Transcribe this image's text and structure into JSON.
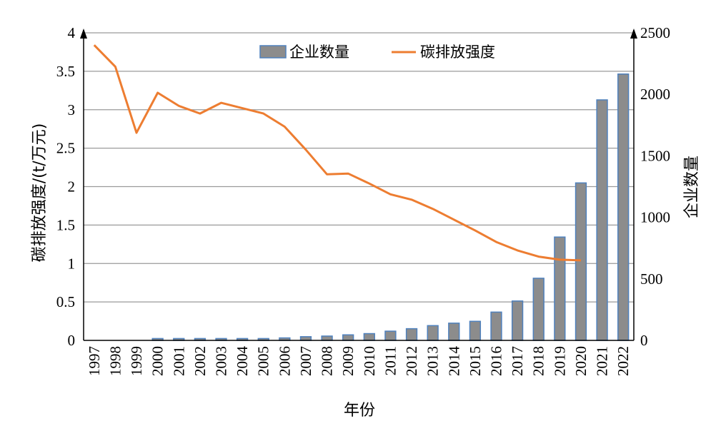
{
  "chart_data": {
    "type": "bar+line",
    "title": "",
    "xlabel": "年份",
    "ylabel_left": "碳排放强度/(t/万元)",
    "ylabel_right": "企业数量",
    "ylim_left": [
      0,
      4
    ],
    "ylim_right": [
      0,
      2500
    ],
    "yticks_left": [
      "0",
      "0.5",
      "1",
      "1.5",
      "2",
      "2.5",
      "3",
      "3.5",
      "4"
    ],
    "yticks_right": [
      "0",
      "500",
      "1000",
      "1500",
      "2000",
      "2500"
    ],
    "grid": true,
    "legend_position": "top-center",
    "categories": [
      "1997",
      "1998",
      "1999",
      "2000",
      "2001",
      "2002",
      "2003",
      "2004",
      "2005",
      "2006",
      "2007",
      "2008",
      "2009",
      "2010",
      "2011",
      "2012",
      "2013",
      "2014",
      "2015",
      "2016",
      "2017",
      "2018",
      "2019",
      "2020",
      "2021",
      "2022"
    ],
    "series": [
      {
        "name": "企业数量",
        "type": "bar",
        "axis": "right",
        "color": "#8c8c8c",
        "edge_color": "#4f81bd",
        "values": [
          0,
          0,
          0,
          15,
          15,
          15,
          15,
          15,
          15,
          20,
          30,
          35,
          45,
          55,
          75,
          95,
          120,
          140,
          155,
          230,
          320,
          505,
          840,
          1280,
          1955,
          2165
        ]
      },
      {
        "name": "碳排放强度",
        "type": "line",
        "axis": "left",
        "color": "#ed7d31",
        "values": [
          3.84,
          3.56,
          2.7,
          3.22,
          3.05,
          2.95,
          3.09,
          3.02,
          2.95,
          2.78,
          2.48,
          2.16,
          2.17,
          2.04,
          1.9,
          1.83,
          1.71,
          1.57,
          1.43,
          1.28,
          1.17,
          1.09,
          1.05,
          1.04,
          null,
          null
        ]
      }
    ]
  }
}
